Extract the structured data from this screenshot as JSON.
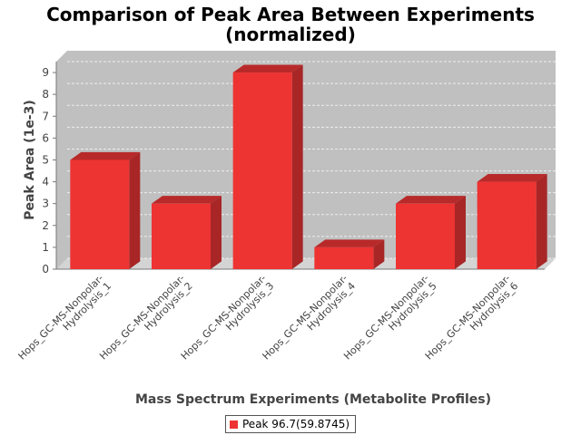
{
  "chart_data": {
    "type": "bar",
    "title_line1": "Comparison of Peak Area Between Experiments",
    "title_line2": "(normalized)",
    "xlabel": "Mass Spectrum Experiments (Metabolite Profiles)",
    "ylabel": "Peak Area (1e-3)",
    "categories": [
      [
        "Hops_GC-MS-Nonpolar-",
        "Hydrolysis_1"
      ],
      [
        "Hops_GC-MS-Nonpolar-",
        "Hydrolysis_2"
      ],
      [
        "Hops_GC-MS-Nonpolar-",
        "Hydrolysis_3"
      ],
      [
        "Hops_GC-MS-Nonpolar-",
        "Hydrolysis_4"
      ],
      [
        "Hops_GC-MS-Nonpolar-",
        "Hydrolysis_5"
      ],
      [
        "Hops_GC-MS-Nonpolar-",
        "Hydrolysis_6"
      ]
    ],
    "series": [
      {
        "name": "Peak 96.7(59.8745)",
        "values": [
          5,
          3,
          9,
          1,
          3,
          4
        ],
        "color": "#ee3333"
      }
    ],
    "ylim": [
      0,
      9.5
    ],
    "yticks": [
      "0",
      "1",
      "2",
      "3",
      "4",
      "5",
      "6",
      "7",
      "8",
      "9"
    ],
    "grid": true,
    "legend_position": "bottom",
    "colors": {
      "plot_bg": "#c0c0c0",
      "bar_front": "#ee3333",
      "bar_top": "#b82a2a",
      "bar_side": "#a82626"
    }
  }
}
